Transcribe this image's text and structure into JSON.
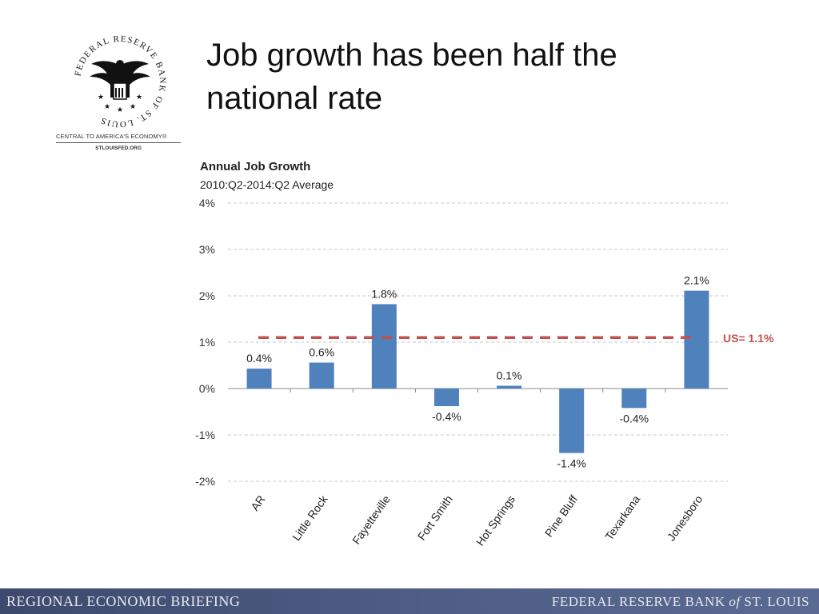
{
  "logo": {
    "ring_text": "FEDERAL RESERVE BANK OF ST. LOUIS",
    "tagline": "CENTRAL TO AMERICA'S ECONOMY®",
    "site": "STLOUISFED.ORG",
    "icon": "eagle-seal-icon"
  },
  "slide_title_line1": "Job growth has been half the",
  "slide_title_line2": "national rate",
  "footer": {
    "left": "REGIONAL ECONOMIC BRIEFING",
    "right_pre": "FEDERAL RESERVE BANK ",
    "right_of": "of",
    "right_post": " ST. LOUIS"
  },
  "colors": {
    "bar": "#4f81bd",
    "us_line": "#c0504d",
    "grid": "#c8c8c8",
    "footer": "#4a5880"
  },
  "chart_data": {
    "type": "bar",
    "title": "Annual Job Growth",
    "subtitle": "2010:Q2-2014:Q2 Average",
    "categories": [
      "AR",
      "Little Rock",
      "Fayetteville",
      "Fort Smith",
      "Hot Springs",
      "Pine Bluff",
      "Texarkana",
      "Jonesboro"
    ],
    "values": [
      0.43,
      0.56,
      1.82,
      -0.38,
      0.06,
      -1.39,
      -0.42,
      2.11
    ],
    "data_labels": [
      "0.4%",
      "0.6%",
      "1.8%",
      "-0.4%",
      "0.1%",
      "-1.4%",
      "-0.4%",
      "2.1%"
    ],
    "ylim": [
      -2,
      4
    ],
    "yticks": [
      4,
      3,
      2,
      1,
      0,
      -1,
      -2
    ],
    "ytick_labels": [
      "4%",
      "3%",
      "2%",
      "1%",
      "0%",
      "-1%",
      "-2%"
    ],
    "grid": true,
    "reference_line": {
      "value": 1.1,
      "label": "US= 1.1%"
    }
  }
}
